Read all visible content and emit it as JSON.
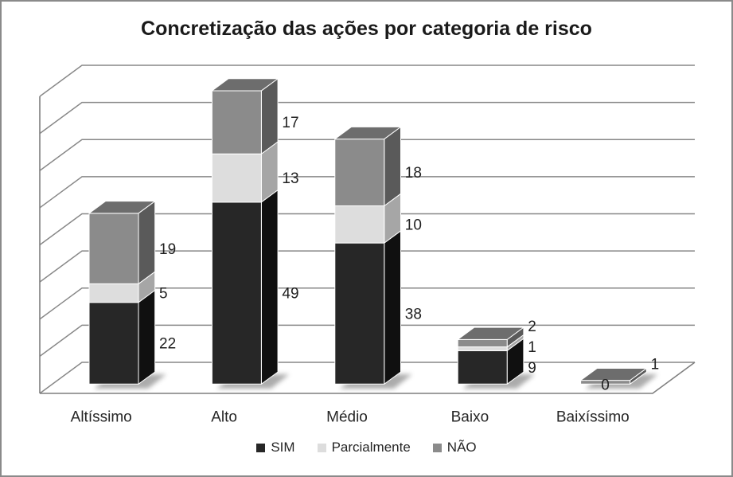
{
  "frame": {
    "border_color": "#8a8a8a",
    "background": "#ffffff"
  },
  "title": "Concretização das ações por categoria de risco",
  "chart_data": {
    "type": "bar",
    "variant": "3d-stacked-column",
    "title": "Concretização das ações por categoria de risco",
    "categories": [
      "Altíssimo",
      "Alto",
      "Médio",
      "Baixo",
      "Baixíssimo"
    ],
    "series": [
      {
        "name": "SIM",
        "values": [
          22,
          49,
          38,
          9,
          0
        ],
        "colors": {
          "front": "#272727",
          "side": "#101010",
          "top": "#3f3f3f"
        },
        "labels_shown": [
          true,
          true,
          true,
          true,
          true
        ]
      },
      {
        "name": "Parcialmente",
        "values": [
          5,
          13,
          10,
          1,
          0
        ],
        "colors": {
          "front": "#dddddd",
          "side": "#a6a6a6",
          "top": "#ececec"
        },
        "labels_shown": [
          true,
          true,
          true,
          true,
          false
        ]
      },
      {
        "name": "NÃO",
        "values": [
          19,
          17,
          18,
          2,
          1
        ],
        "colors": {
          "front": "#8b8b8b",
          "side": "#5a5a5a",
          "top": "#6d6d6d"
        },
        "labels_shown": [
          true,
          true,
          true,
          true,
          true
        ]
      }
    ],
    "ylim": [
      0,
      80
    ],
    "grid_step": 10,
    "gridlines": true,
    "data_labels": true,
    "legend_position": "bottom",
    "xlabel": "",
    "ylabel": ""
  },
  "legend": {
    "items": [
      {
        "label": "SIM",
        "color": "#272727"
      },
      {
        "label": "Parcialmente",
        "color": "#dddddd"
      },
      {
        "label": "NÃO",
        "color": "#8b8b8b"
      }
    ]
  },
  "style": {
    "gridline_color": "#878787",
    "axis_color": "#7f7f7f",
    "label_color": "#1f1f1f",
    "title_color": "#1a1a1a",
    "shadow_color": "#909090"
  }
}
